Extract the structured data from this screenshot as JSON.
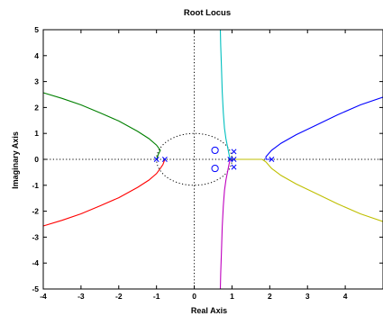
{
  "chart_data": {
    "type": "line",
    "title": "Root Locus",
    "xlabel": "Real Axis",
    "ylabel": "Imaginary Axis",
    "xlim": [
      -4,
      5
    ],
    "ylim": [
      -5,
      5
    ],
    "xticks": [
      "-4",
      "-3",
      "-2",
      "-1",
      "0",
      "1",
      "2",
      "3",
      "4"
    ],
    "yticks": [
      "5",
      "4",
      "3",
      "2",
      "1",
      "0",
      "-1",
      "-2",
      "-3",
      "-4",
      "-5"
    ],
    "grid": false,
    "unit_circle": true,
    "colors": {
      "green": "#008000",
      "red": "#ff0000",
      "cyan": "#00bfbf",
      "magenta": "#bf00bf",
      "blue": "#0000ff",
      "yellow": "#bfbf00",
      "markers": "#0000ff",
      "frame": "#000000",
      "dotted": "#000000"
    },
    "poles": [
      {
        "x": -1.0,
        "y": 0
      },
      {
        "x": -0.78,
        "y": 0
      },
      {
        "x": 0.95,
        "y": 0
      },
      {
        "x": 1.05,
        "y": 0.3
      },
      {
        "x": 1.05,
        "y": -0.3
      },
      {
        "x": 1.05,
        "y": 0
      },
      {
        "x": 2.05,
        "y": 0
      }
    ],
    "zeros": [
      {
        "x": 0.55,
        "y": 0.35
      },
      {
        "x": 0.55,
        "y": -0.35
      }
    ],
    "series": [
      {
        "color": "green",
        "points": [
          [
            -1.0,
            0
          ],
          [
            -0.95,
            0.2
          ],
          [
            -0.9,
            0.35
          ],
          [
            -1.0,
            0.55
          ],
          [
            -1.2,
            0.8
          ],
          [
            -1.5,
            1.08
          ],
          [
            -2.0,
            1.48
          ],
          [
            -2.5,
            1.8
          ],
          [
            -3.0,
            2.1
          ],
          [
            -3.5,
            2.35
          ],
          [
            -4.0,
            2.57
          ]
        ]
      },
      {
        "color": "red",
        "points": [
          [
            -0.78,
            0
          ],
          [
            -0.83,
            -0.2
          ],
          [
            -0.9,
            -0.35
          ],
          [
            -1.0,
            -0.55
          ],
          [
            -1.2,
            -0.8
          ],
          [
            -1.5,
            -1.08
          ],
          [
            -2.0,
            -1.48
          ],
          [
            -2.5,
            -1.8
          ],
          [
            -3.0,
            -2.1
          ],
          [
            -3.5,
            -2.35
          ],
          [
            -4.0,
            -2.57
          ]
        ]
      },
      {
        "color": "cyan",
        "points": [
          [
            0.95,
            0
          ],
          [
            0.92,
            0.2
          ],
          [
            0.88,
            0.5
          ],
          [
            0.84,
            0.8
          ],
          [
            0.8,
            1.2
          ],
          [
            0.77,
            1.8
          ],
          [
            0.74,
            2.6
          ],
          [
            0.72,
            3.6
          ],
          [
            0.7,
            4.4
          ],
          [
            0.69,
            5.0
          ]
        ]
      },
      {
        "color": "magenta",
        "points": [
          [
            0.95,
            0
          ],
          [
            0.92,
            -0.2
          ],
          [
            0.88,
            -0.5
          ],
          [
            0.84,
            -0.8
          ],
          [
            0.8,
            -1.2
          ],
          [
            0.77,
            -1.8
          ],
          [
            0.74,
            -2.6
          ],
          [
            0.72,
            -3.6
          ],
          [
            0.7,
            -4.4
          ],
          [
            0.69,
            -5.0
          ]
        ]
      },
      {
        "color": "yellow",
        "points": [
          [
            1.05,
            0
          ],
          [
            1.5,
            0
          ],
          [
            1.8,
            0
          ],
          [
            1.9,
            -0.1
          ],
          [
            2.05,
            -0.35
          ],
          [
            2.3,
            -0.62
          ],
          [
            2.7,
            -0.95
          ],
          [
            3.2,
            -1.3
          ],
          [
            3.8,
            -1.72
          ],
          [
            4.4,
            -2.1
          ],
          [
            5.0,
            -2.4
          ]
        ]
      },
      {
        "color": "blue",
        "points": [
          [
            2.05,
            0
          ],
          [
            1.9,
            0
          ],
          [
            1.9,
            0.1
          ],
          [
            2.05,
            0.35
          ],
          [
            2.3,
            0.62
          ],
          [
            2.7,
            0.95
          ],
          [
            3.2,
            1.3
          ],
          [
            3.8,
            1.72
          ],
          [
            4.4,
            2.1
          ],
          [
            5.0,
            2.4
          ]
        ]
      }
    ]
  }
}
